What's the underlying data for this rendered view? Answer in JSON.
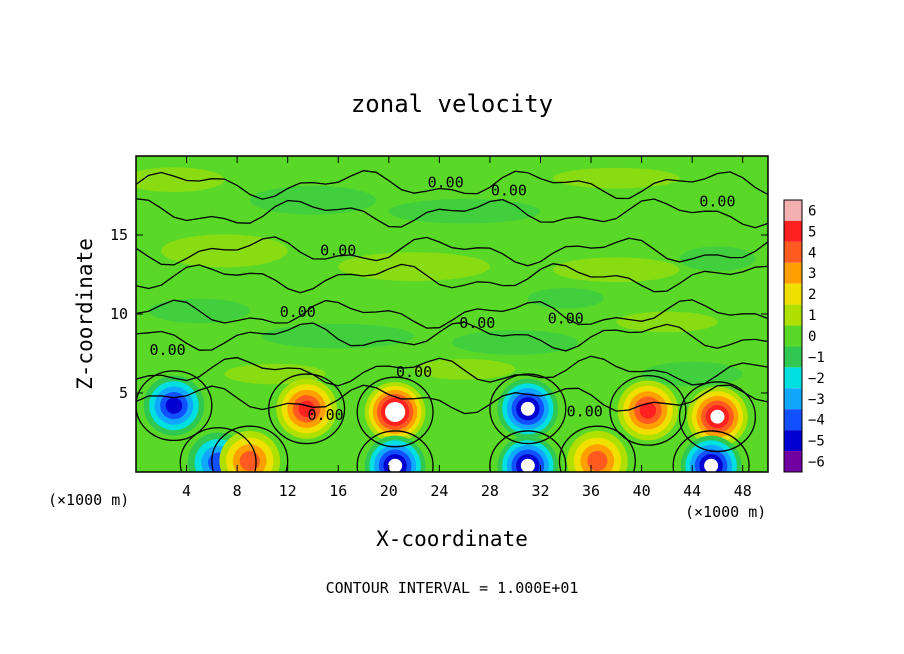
{
  "chart_data": {
    "type": "heatmap",
    "title": "zonal velocity",
    "xlabel": "X-coordinate",
    "ylabel": "Z-coordinate",
    "x_unit_left": "(×1000 m)",
    "x_unit_right": "(×1000 m)",
    "xlim": [
      0,
      50
    ],
    "ylim": [
      0,
      20
    ],
    "x_ticks": [
      4,
      8,
      12,
      16,
      20,
      24,
      28,
      32,
      36,
      40,
      44,
      48
    ],
    "y_ticks": [
      5,
      10,
      15
    ],
    "colorbar_ticks": [
      6,
      5,
      4,
      3,
      2,
      1,
      0,
      -1,
      -2,
      -3,
      -4,
      -5,
      -6
    ],
    "colorbar_colors": [
      "#f4b0b0",
      "#ff2020",
      "#ff5a20",
      "#ffa000",
      "#f0e000",
      "#b0e000",
      "#5ad828",
      "#30c850",
      "#00e0e0",
      "#10a8ff",
      "#1050ff",
      "#0000d0",
      "#7000a0"
    ],
    "contour_interval": "CONTOUR INTERVAL = 1.000E+01",
    "contour_labels": [
      {
        "text": "0.00",
        "x": 24.5,
        "z": 18.0
      },
      {
        "text": "0.00",
        "x": 29.5,
        "z": 17.5
      },
      {
        "text": "0.00",
        "x": 46.0,
        "z": 16.8
      },
      {
        "text": "0.00",
        "x": 16.0,
        "z": 13.7
      },
      {
        "text": "0.00",
        "x": 12.8,
        "z": 9.8
      },
      {
        "text": "0.00",
        "x": 27.0,
        "z": 9.1
      },
      {
        "text": "0.00",
        "x": 34.0,
        "z": 9.4
      },
      {
        "text": "0.00",
        "x": 2.5,
        "z": 7.4
      },
      {
        "text": "0.00",
        "x": 22.0,
        "z": 6.0
      },
      {
        "text": "0.00",
        "x": 15.0,
        "z": 3.3
      },
      {
        "text": "0.00",
        "x": 35.5,
        "z": 3.5
      }
    ],
    "features": [
      {
        "type": "neg",
        "x": 3.0,
        "z": 4.2,
        "amp": 4.5
      },
      {
        "type": "pos",
        "x": 13.5,
        "z": 4.0,
        "amp": 4.8
      },
      {
        "type": "pos",
        "x": 20.5,
        "z": 3.8,
        "amp": 6.2
      },
      {
        "type": "neg",
        "x": 31.0,
        "z": 4.0,
        "amp": 6.0
      },
      {
        "type": "pos",
        "x": 40.5,
        "z": 3.9,
        "amp": 4.5
      },
      {
        "type": "pos",
        "x": 46.0,
        "z": 3.5,
        "amp": 6.0
      },
      {
        "type": "neg",
        "x": 6.5,
        "z": 0.6,
        "amp": 4.0
      },
      {
        "type": "neg",
        "x": 20.5,
        "z": 0.4,
        "amp": 6.0
      },
      {
        "type": "neg",
        "x": 31.0,
        "z": 0.4,
        "amp": 6.0
      },
      {
        "type": "neg",
        "x": 45.5,
        "z": 0.4,
        "amp": 6.0
      },
      {
        "type": "pos",
        "x": 9.0,
        "z": 0.7,
        "amp": 3.5
      },
      {
        "type": "pos",
        "x": 36.5,
        "z": 0.7,
        "amp": 3.5
      }
    ]
  }
}
